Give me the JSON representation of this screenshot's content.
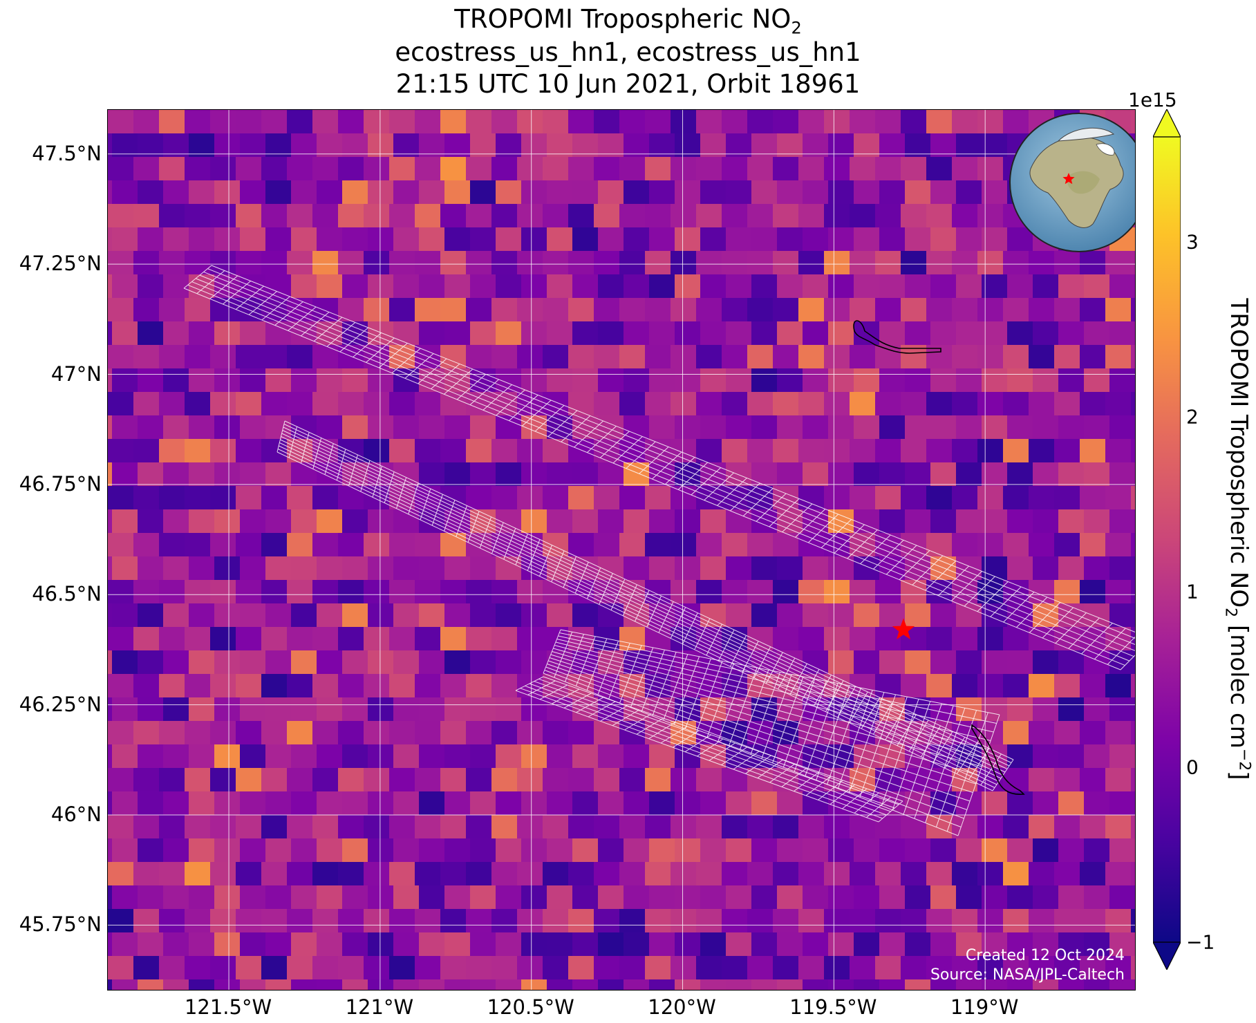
{
  "title": {
    "line1": "TROPOMI Tropospheric NO",
    "line1_sub": "2",
    "line2": "ecostress_us_hn1, ecostress_us_hn1",
    "line3": "21:15 UTC 10 Jun 2021, Orbit 18961"
  },
  "map": {
    "lon_range": [
      -121.9,
      -118.5
    ],
    "lat_range": [
      45.6,
      47.6
    ],
    "lat_ticks": [
      {
        "value": 47.5,
        "label": "47.5°N"
      },
      {
        "value": 47.25,
        "label": "47.25°N"
      },
      {
        "value": 47.0,
        "label": "47°N"
      },
      {
        "value": 46.75,
        "label": "46.75°N"
      },
      {
        "value": 46.5,
        "label": "46.5°N"
      },
      {
        "value": 46.25,
        "label": "46.25°N"
      },
      {
        "value": 46.0,
        "label": "46°N"
      },
      {
        "value": 45.75,
        "label": "45.75°N"
      }
    ],
    "lon_ticks": [
      {
        "value": -121.5,
        "label": "121.5°W"
      },
      {
        "value": -121.0,
        "label": "121°W"
      },
      {
        "value": -120.5,
        "label": "120.5°W"
      },
      {
        "value": -120.0,
        "label": "120°W"
      },
      {
        "value": -119.5,
        "label": "119.5°W"
      },
      {
        "value": -119.0,
        "label": "119°W"
      }
    ],
    "site_marker": {
      "lon": -119.27,
      "lat": 46.42,
      "color": "#ff0000"
    },
    "gridlines": true,
    "inset_globe": "top-right"
  },
  "colorbar": {
    "label": "TROPOMI Tropospheric NO",
    "label_sub": "2",
    "label_units": "[molec cm",
    "label_sup": "−2",
    "label_end": "]",
    "exponent": "1e15",
    "range": [
      -1,
      3.6
    ],
    "colormap": "plasma",
    "ticks": [
      {
        "value": 3,
        "label": "3"
      },
      {
        "value": 2,
        "label": "2"
      },
      {
        "value": 1,
        "label": "1"
      },
      {
        "value": 0,
        "label": "0"
      },
      {
        "value": -1,
        "label": "−1"
      }
    ]
  },
  "credits": {
    "created": "Created 12 Oct 2024",
    "source": "Source: NASA/JPL-Caltech"
  }
}
